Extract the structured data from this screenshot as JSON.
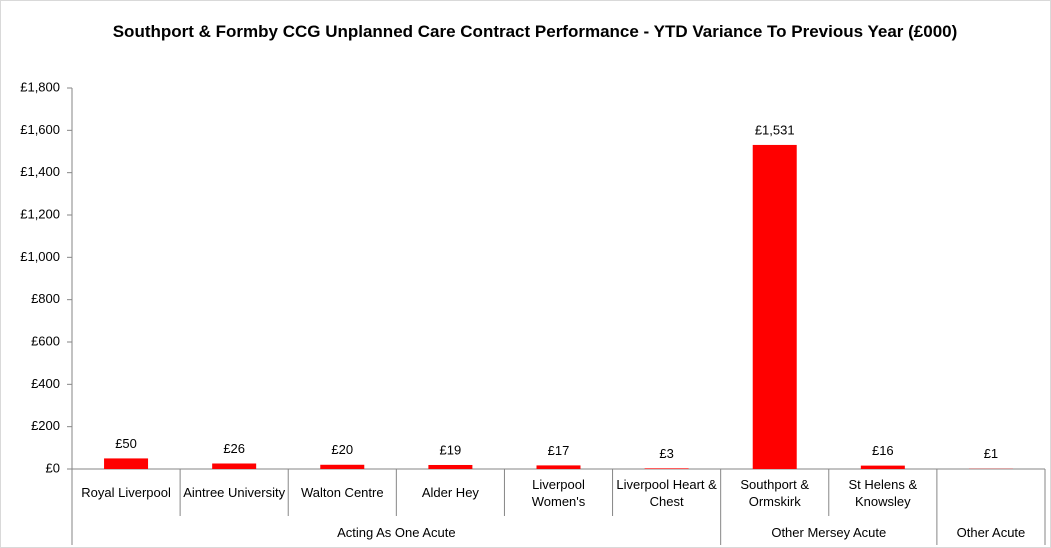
{
  "chart_data": {
    "type": "bar",
    "title": "Southport & Formby CCG Unplanned Care Contract Performance - YTD Variance To Previous Year (£000)",
    "color": "#ff0000",
    "groups": [
      {
        "name": "Acting As One Acute",
        "categories": [
          "Royal Liverpool",
          "Aintree University",
          "Walton Centre",
          "Alder Hey",
          "Liverpool Women's",
          "Liverpool Heart & Chest"
        ],
        "values": [
          50,
          26,
          20,
          19,
          17,
          3
        ],
        "value_labels": [
          "£50",
          "£26",
          "£20",
          "£19",
          "£17",
          "£3"
        ]
      },
      {
        "name": "Other Mersey Acute",
        "categories": [
          "Southport & Ormskirk",
          "St Helens & Knowsley"
        ],
        "values": [
          1531,
          16
        ],
        "value_labels": [
          "£1,531",
          "£16"
        ]
      },
      {
        "name": "Other Acute",
        "categories": [
          null
        ],
        "values": [
          1
        ],
        "value_labels": [
          "£1"
        ]
      }
    ],
    "ylim": [
      0,
      1800
    ],
    "yticks": [
      {
        "value": 0,
        "label": "£0"
      },
      {
        "value": 200,
        "label": "£200"
      },
      {
        "value": 400,
        "label": "£400"
      },
      {
        "value": 600,
        "label": "£600"
      },
      {
        "value": 800,
        "label": "£800"
      },
      {
        "value": 1000,
        "label": "£1,000"
      },
      {
        "value": 1200,
        "label": "£1,200"
      },
      {
        "value": 1400,
        "label": "£1,400"
      },
      {
        "value": 1600,
        "label": "£1,600"
      },
      {
        "value": 1800,
        "label": "£1,800"
      }
    ],
    "grid": false
  }
}
